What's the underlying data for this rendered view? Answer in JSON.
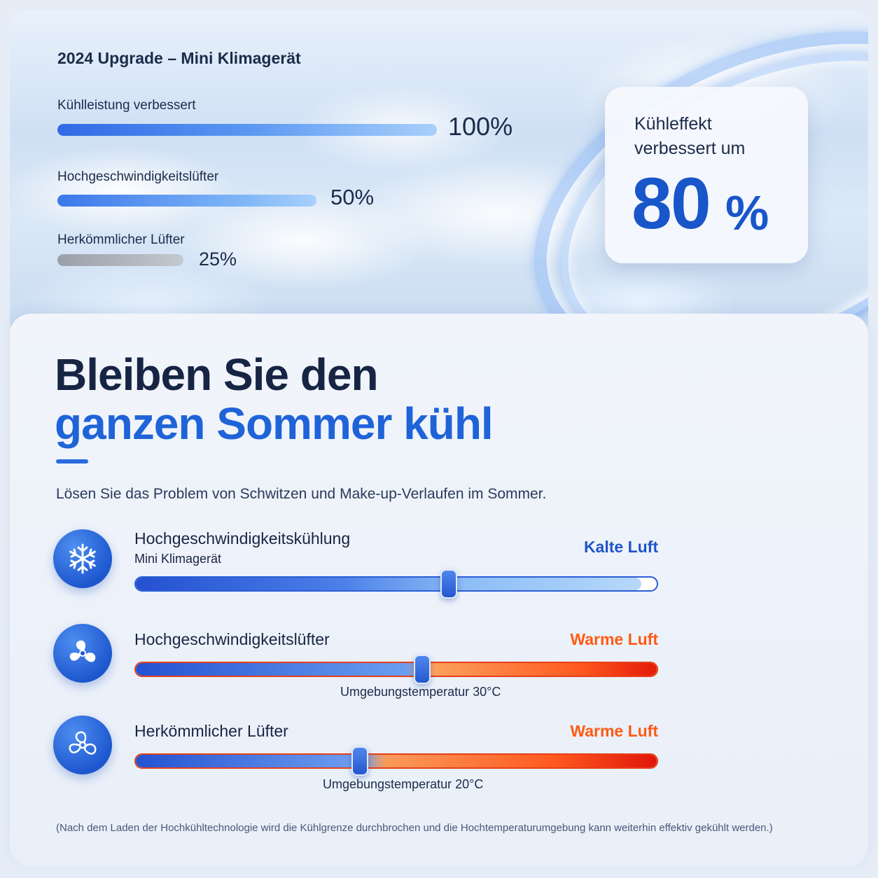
{
  "hero": {
    "title": "2024 Upgrade – Mini Klimagerät",
    "bars": [
      {
        "label": "Kühlleistung verbessert",
        "value": "100%",
        "level": 1.0
      },
      {
        "label": "Hochgeschwindigkeitslüfter",
        "value": "50%",
        "level": 0.5
      },
      {
        "label": "Herkömmlicher Lüfter",
        "value": "25%",
        "level": 0.25
      }
    ],
    "badge": {
      "text": "Kühleffekt verbessert um",
      "number": "80",
      "percent": "%"
    }
  },
  "main": {
    "headline_1": "Bleiben Sie den",
    "headline_2": "ganzen Sommer kühl",
    "subtitle": "Lösen Sie das Problem von Schwitzen und Make-up-Verlaufen im Sommer.",
    "rows": [
      {
        "icon": "snowflake-icon",
        "title": "Hochgeschwindigkeitskühlung",
        "subtitle": "Mini Klimagerät",
        "status": "Kalte Luft",
        "status_color": "#1f55c8",
        "knob_level": 0.6,
        "caption": ""
      },
      {
        "icon": "fan-icon",
        "title": "Hochgeschwindigkeitslüfter",
        "subtitle": "",
        "status": "Warme Luft",
        "status_color": "#ff5a14",
        "knob_level": 0.55,
        "caption": "Umgebungstemperatur 30°C"
      },
      {
        "icon": "fan-outline-icon",
        "title": "Herkömmlicher Lüfter",
        "subtitle": "",
        "status": "Warme Luft",
        "status_color": "#ff5a14",
        "knob_level": 0.43,
        "caption": "Umgebungstemperatur 20°C"
      }
    ],
    "footnote": "(Nach dem Laden der Hochkühltechnologie wird die Kühlgrenze durchbrochen und die Hochtemperaturumgebung kann weiterhin effektiv gekühlt werden.)"
  }
}
